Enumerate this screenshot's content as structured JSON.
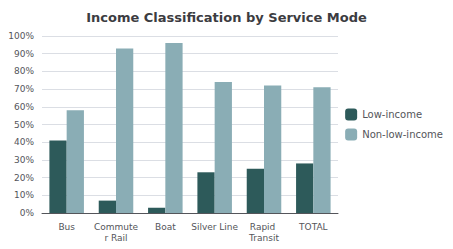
{
  "chart_data": {
    "type": "bar",
    "title": "Income Classification by Service Mode",
    "categories": [
      "Bus",
      "Commuter Rail",
      "Boat",
      "Silver Line",
      "Rapid Transit",
      "TOTAL"
    ],
    "series": [
      {
        "name": "Low-income",
        "color": "#2d5a5a",
        "values": [
          41,
          7,
          3,
          23,
          25,
          28
        ]
      },
      {
        "name": "Non-low-income",
        "color": "#8aadb5",
        "values": [
          58,
          93,
          96,
          74,
          72,
          71
        ]
      }
    ],
    "ylim": [
      0,
      100
    ],
    "yticks": [
      {
        "value": 0,
        "label": "0%"
      },
      {
        "value": 10,
        "label": "10%"
      },
      {
        "value": 20,
        "label": "20%"
      },
      {
        "value": 30,
        "label": "30%"
      },
      {
        "value": 40,
        "label": "40%"
      },
      {
        "value": 50,
        "label": "50%"
      },
      {
        "value": 60,
        "label": "60%"
      },
      {
        "value": 70,
        "label": "70%"
      },
      {
        "value": 80,
        "label": "80%"
      },
      {
        "value": 90,
        "label": "90%"
      },
      {
        "value": 100,
        "label": "100%"
      }
    ],
    "grid": true,
    "legend": "right"
  }
}
